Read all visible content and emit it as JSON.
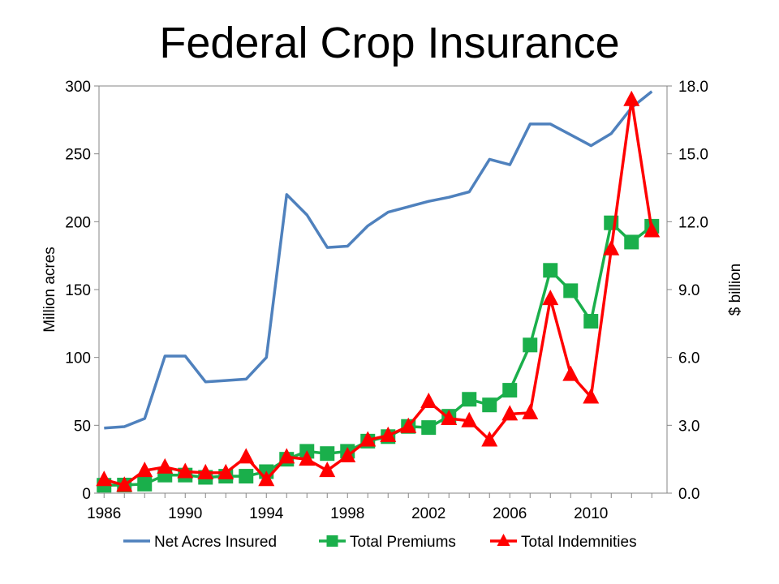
{
  "title": "Federal Crop Insurance",
  "chart_data": {
    "type": "line",
    "x_ticks": [
      "1986",
      "1990",
      "1994",
      "1998",
      "2002",
      "2006",
      "2010"
    ],
    "y_left": {
      "label": "Million acres",
      "ticks": [
        "0",
        "50",
        "100",
        "150",
        "200",
        "250",
        "300"
      ],
      "range": [
        0,
        300
      ]
    },
    "y_right": {
      "label": "$ billion",
      "ticks": [
        "0.0",
        "3.0",
        "6.0",
        "9.0",
        "12.0",
        "15.0",
        "18.0"
      ],
      "range": [
        0,
        18
      ]
    },
    "x_range": [
      1986,
      2013
    ],
    "legend_position": "bottom",
    "grid": false,
    "series": [
      {
        "name": "Net Acres Insured",
        "axis": "left",
        "color": "#4F81BD",
        "marker": "none",
        "x": [
          1986,
          1987,
          1988,
          1989,
          1990,
          1991,
          1992,
          1993,
          1994,
          1995,
          1996,
          1997,
          1998,
          1999,
          2000,
          2001,
          2002,
          2003,
          2004,
          2005,
          2006,
          2007,
          2008,
          2009,
          2010,
          2011,
          2012,
          2013
        ],
        "values": [
          48,
          49,
          55,
          101,
          101,
          82,
          83,
          84,
          100,
          220,
          205,
          181,
          182,
          197,
          207,
          211,
          215,
          218,
          222,
          246,
          242,
          272,
          272,
          264,
          256,
          265,
          284,
          296
        ]
      },
      {
        "name": "Total Premiums",
        "axis": "right",
        "color": "#1AAF4B",
        "marker": "square",
        "x": [
          1986,
          1987,
          1988,
          1989,
          1990,
          1991,
          1992,
          1993,
          1994,
          1995,
          1996,
          1997,
          1998,
          1999,
          2000,
          2001,
          2002,
          2003,
          2004,
          2005,
          2006,
          2007,
          2008,
          2009,
          2010,
          2011,
          2012,
          2013
        ],
        "values": [
          0.35,
          0.36,
          0.4,
          0.8,
          0.8,
          0.7,
          0.75,
          0.75,
          0.95,
          1.5,
          1.85,
          1.75,
          1.85,
          2.3,
          2.5,
          2.95,
          2.9,
          3.4,
          4.15,
          3.9,
          4.55,
          6.55,
          9.85,
          8.95,
          7.6,
          11.95,
          11.1,
          11.8
        ]
      },
      {
        "name": "Total Indemnities",
        "axis": "right",
        "color": "#FF0000",
        "marker": "triangle",
        "x": [
          1986,
          1987,
          1988,
          1989,
          1990,
          1991,
          1992,
          1993,
          1994,
          1995,
          1996,
          1997,
          1998,
          1999,
          2000,
          2001,
          2002,
          2003,
          2004,
          2005,
          2006,
          2007,
          2008,
          2009,
          2010,
          2011,
          2012,
          2013
        ],
        "values": [
          0.6,
          0.35,
          1.0,
          1.15,
          0.95,
          0.9,
          0.9,
          1.6,
          0.6,
          1.6,
          1.5,
          1.0,
          1.65,
          2.35,
          2.55,
          2.95,
          4.05,
          3.3,
          3.2,
          2.35,
          3.5,
          3.55,
          8.6,
          5.25,
          4.25,
          10.8,
          17.4,
          11.6
        ]
      }
    ]
  }
}
